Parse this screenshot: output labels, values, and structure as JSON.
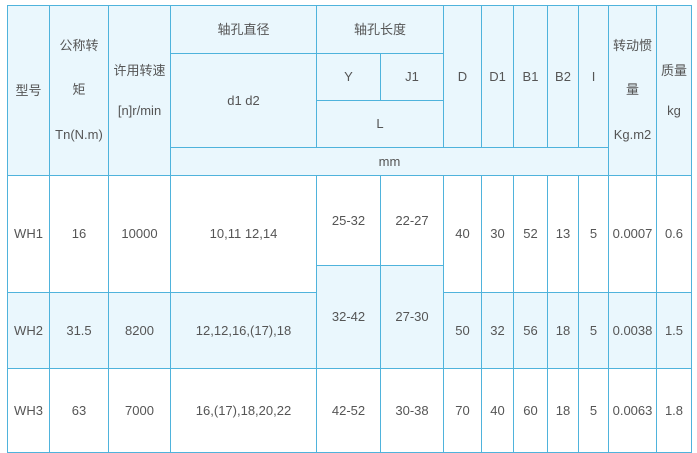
{
  "header": {
    "model": [
      "型号"
    ],
    "torque": [
      "公称转",
      "矩",
      "Tn(N.m)"
    ],
    "speed": [
      "许用转速",
      "[n]r/min"
    ],
    "bore_diameter": [
      "轴孔直径"
    ],
    "d1d2": [
      "d1  d2"
    ],
    "bore_length": [
      "轴孔长度"
    ],
    "Y": [
      "Y"
    ],
    "J1": [
      "J1"
    ],
    "L": [
      "L"
    ],
    "unit": [
      "mm"
    ],
    "D": [
      "D"
    ],
    "D1": [
      "D1"
    ],
    "B1": [
      "B1"
    ],
    "B2": [
      "B2"
    ],
    "I": [
      "I"
    ],
    "inertia": [
      "转动惯",
      "量",
      "Kg.m2"
    ],
    "mass": [
      "质量",
      "kg"
    ]
  },
  "rows": [
    {
      "model": [
        "WH1"
      ],
      "torque": [
        "16"
      ],
      "speed": [
        "10000"
      ],
      "d": [
        "10,11  12,14"
      ],
      "Y": [
        "25-32"
      ],
      "J1": [
        "22-27"
      ],
      "D": [
        "40"
      ],
      "D1": [
        "30"
      ],
      "B1": [
        "52"
      ],
      "B2": [
        "13"
      ],
      "I": [
        "5"
      ],
      "inertia": [
        "0.0007"
      ],
      "mass": [
        "0.6"
      ]
    },
    {
      "model": [
        "WH2"
      ],
      "torque": [
        "31.5"
      ],
      "speed": [
        "8200"
      ],
      "d": [
        "12,12,16,(17),18"
      ],
      "Y": [
        "32-42"
      ],
      "J1": [
        "27-30"
      ],
      "D": [
        "50"
      ],
      "D1": [
        "32"
      ],
      "B1": [
        "56"
      ],
      "B2": [
        "18"
      ],
      "I": [
        "5"
      ],
      "inertia": [
        "0.0038"
      ],
      "mass": [
        "1.5"
      ]
    },
    {
      "model": [
        "WH3"
      ],
      "torque": [
        "63"
      ],
      "speed": [
        "7000"
      ],
      "d": [
        "16,(17),18,20,22"
      ],
      "Y": [
        "42-52"
      ],
      "J1": [
        "30-38"
      ],
      "D": [
        "70"
      ],
      "D1": [
        "40"
      ],
      "B1": [
        "60"
      ],
      "B2": [
        "18"
      ],
      "I": [
        "5"
      ],
      "inertia": [
        "0.0063"
      ],
      "mass": [
        "1.8"
      ]
    }
  ],
  "colors": {
    "border": "#4fb3dc",
    "header_bg": "#eaf7fd",
    "text": "#555555"
  }
}
